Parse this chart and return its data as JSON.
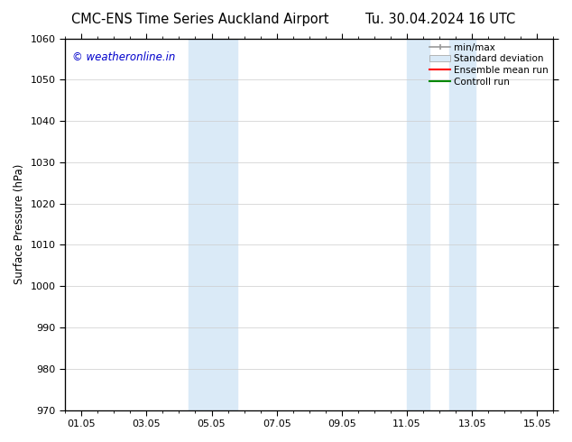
{
  "title_left": "CMC-ENS Time Series Auckland Airport",
  "title_right": "Tu. 30.04.2024 16 UTC",
  "ylabel": "Surface Pressure (hPa)",
  "ylim": [
    970,
    1060
  ],
  "yticks": [
    970,
    980,
    990,
    1000,
    1010,
    1020,
    1030,
    1040,
    1050,
    1060
  ],
  "xtick_labels": [
    "01.05",
    "03.05",
    "05.05",
    "07.05",
    "09.05",
    "11.05",
    "13.05",
    "15.05"
  ],
  "xtick_positions": [
    1,
    3,
    5,
    7,
    9,
    11,
    13,
    15
  ],
  "xlim": [
    0.5,
    15.5
  ],
  "shaded_bands": [
    {
      "x_start": 4.3,
      "x_end": 5.0
    },
    {
      "x_start": 5.0,
      "x_end": 5.8
    },
    {
      "x_start": 11.0,
      "x_end": 11.7
    },
    {
      "x_start": 12.3,
      "x_end": 13.1
    }
  ],
  "band_color": "#daeaf7",
  "copyright_text": "© weatheronline.in",
  "copyright_color": "#0000cc",
  "legend_items": [
    {
      "label": "min/max",
      "color": "#aaaaaa",
      "style": "line_with_caps"
    },
    {
      "label": "Standard deviation",
      "color": "#daeaf7",
      "style": "filled_box"
    },
    {
      "label": "Ensemble mean run",
      "color": "#ff0000",
      "style": "line"
    },
    {
      "label": "Controll run",
      "color": "#008800",
      "style": "line"
    }
  ],
  "bg_color": "#ffffff",
  "grid_color": "#cccccc",
  "title_fontsize": 10.5,
  "axis_fontsize": 8.5,
  "tick_fontsize": 8,
  "legend_fontsize": 7.5,
  "copyright_fontsize": 8.5
}
